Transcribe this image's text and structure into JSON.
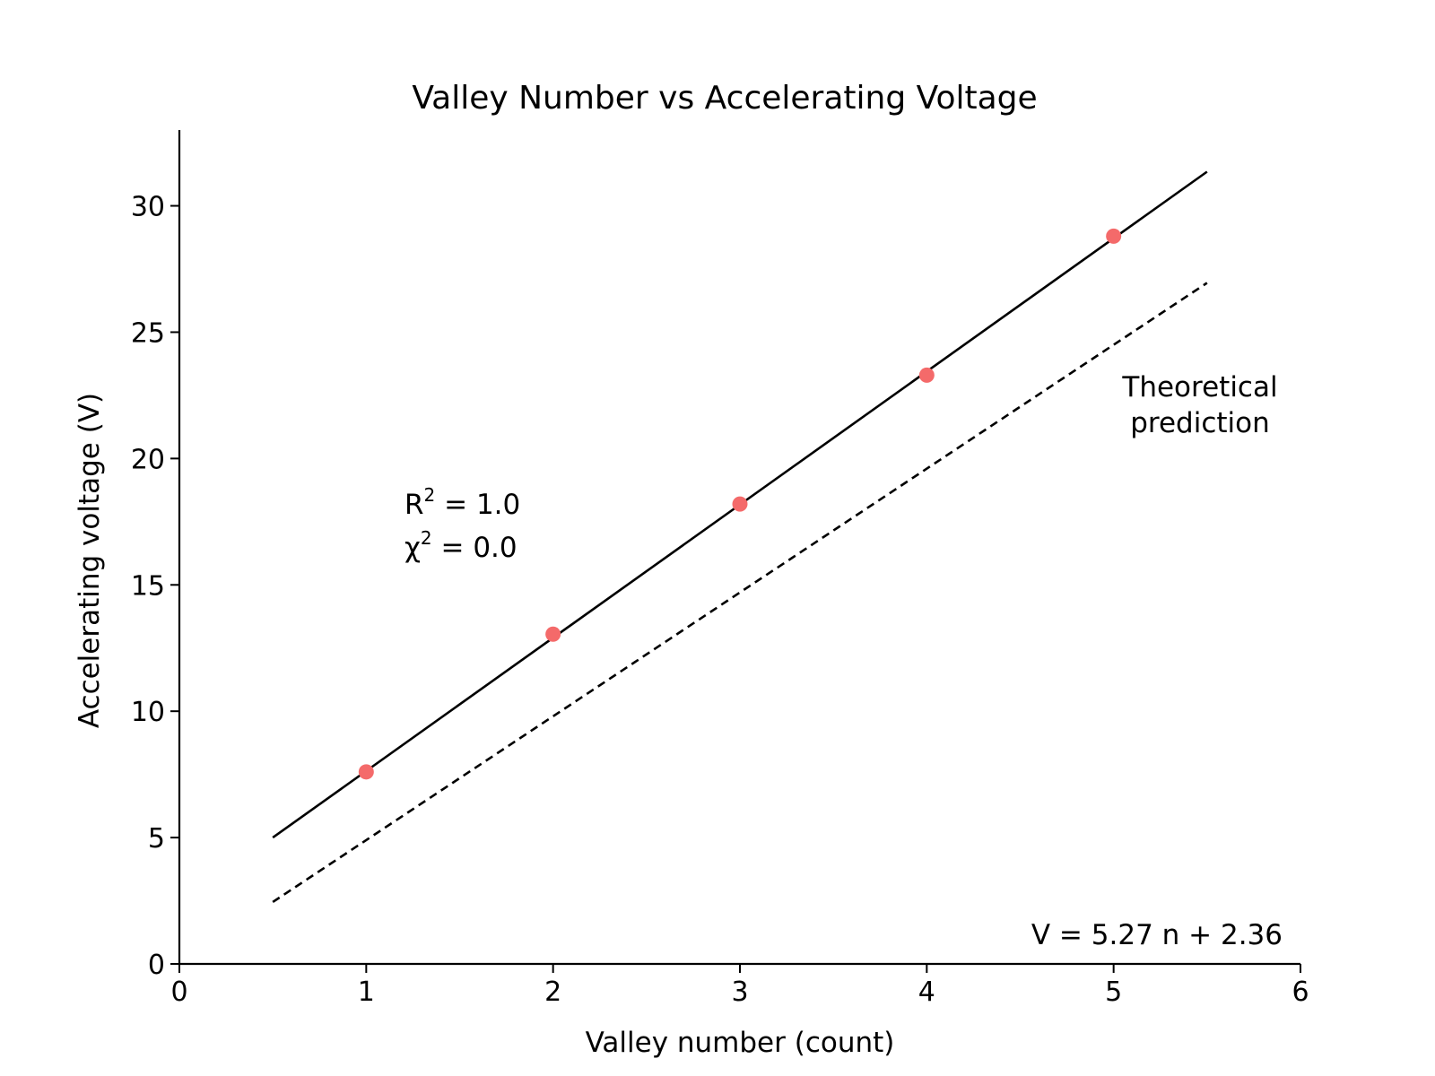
{
  "chart_data": {
    "type": "scatter",
    "title": "Valley Number vs Accelerating Voltage",
    "xlabel": "Valley number (count)",
    "ylabel": "Accelerating voltage (V)",
    "xlim": [
      0,
      6
    ],
    "ylim": [
      0,
      33
    ],
    "xticks": [
      0,
      1,
      2,
      3,
      4,
      5,
      6
    ],
    "yticks": [
      0,
      5,
      10,
      15,
      20,
      25,
      30
    ],
    "grid": false,
    "series": [
      {
        "kind": "points",
        "color": "#f46a6a",
        "x": [
          1,
          2,
          3,
          4,
          5
        ],
        "y": [
          7.6,
          13.05,
          18.2,
          23.3,
          28.8
        ]
      },
      {
        "kind": "line",
        "style": "solid",
        "color": "#000000",
        "x": [
          0.5,
          5.5
        ],
        "y": [
          5.0,
          31.35
        ]
      },
      {
        "kind": "line",
        "style": "dashed",
        "color": "#000000",
        "x": [
          0.5,
          5.5
        ],
        "y": [
          2.45,
          26.95
        ]
      }
    ],
    "annotations": {
      "theoretical_line1": "Theoretical",
      "theoretical_line2": "prediction",
      "equation": "V = 5.27 n + 2.36",
      "r2_prefix": "R",
      "r2_suffix": " = 1.0",
      "chi2_prefix": "χ",
      "chi2_suffix": " = 0.0",
      "sup": "2"
    }
  }
}
